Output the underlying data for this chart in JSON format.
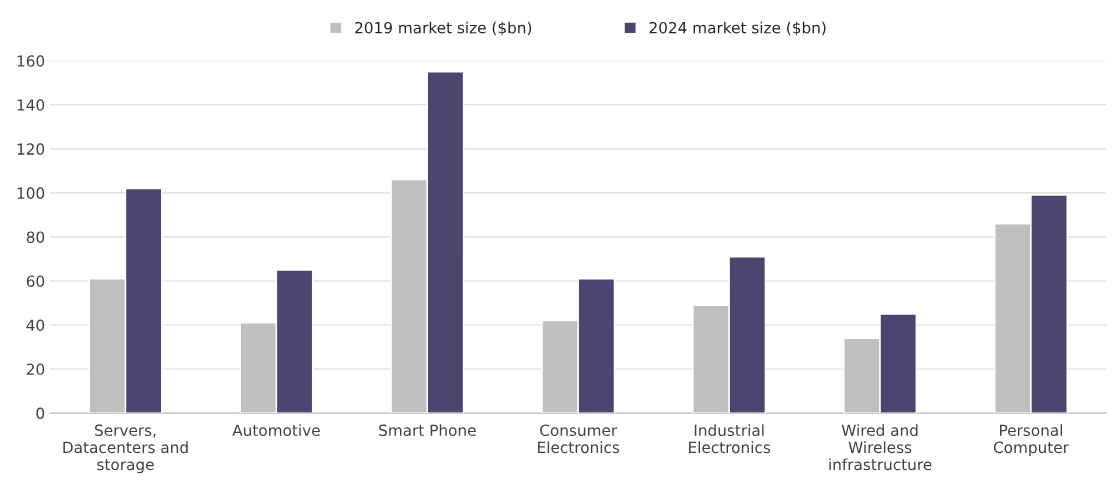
{
  "chart_data": {
    "type": "bar",
    "categories": [
      "Servers,\nDatacenters and\nstorage",
      "Automotive",
      "Smart Phone",
      "Consumer\nElectronics",
      "Industrial\nElectronics",
      "Wired and\nWireless\ninfrastructure",
      "Personal\nComputer"
    ],
    "series": [
      {
        "name": "2019 market size ($bn)",
        "color": "#bfbfbf",
        "values": [
          61,
          41,
          106,
          42,
          49,
          34,
          86
        ]
      },
      {
        "name": "2024 market size ($bn)",
        "color": "#4a4670",
        "values": [
          102,
          65,
          155,
          61,
          71,
          45,
          99
        ]
      }
    ],
    "ylim": [
      0,
      160
    ],
    "yticks": [
      0,
      20,
      40,
      60,
      80,
      100,
      120,
      140,
      160
    ],
    "grid": "y",
    "legend": "top"
  }
}
